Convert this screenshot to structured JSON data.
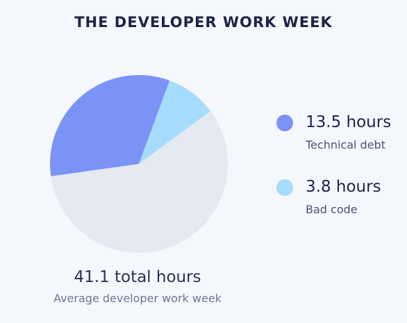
{
  "title": "THE DEVELOPER WORK WEEK",
  "chart_data": {
    "type": "pie",
    "title": "THE DEVELOPER WORK WEEK",
    "total": 41.1,
    "total_label": "41.1 total hours",
    "total_sublabel": "Average developer work week",
    "slices": [
      {
        "value": 13.5,
        "value_label": "13.5 hours",
        "label": "Technical debt",
        "color": "#7b93f5"
      },
      {
        "value": 3.8,
        "value_label": "3.8 hours",
        "label": "Bad code",
        "color": "#a6dcfb"
      },
      {
        "value": 23.8,
        "value_label": "",
        "label": "",
        "color": "#e5e9f0"
      }
    ]
  }
}
